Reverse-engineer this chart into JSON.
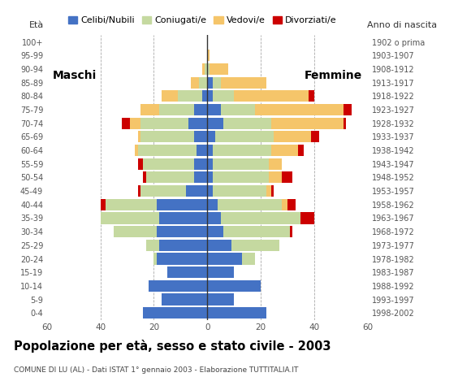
{
  "age_groups": [
    "0-4",
    "5-9",
    "10-14",
    "15-19",
    "20-24",
    "25-29",
    "30-34",
    "35-39",
    "40-44",
    "45-49",
    "50-54",
    "55-59",
    "60-64",
    "65-69",
    "70-74",
    "75-79",
    "80-84",
    "85-89",
    "90-94",
    "95-99",
    "100+"
  ],
  "birth_years": [
    "1998-2002",
    "1993-1997",
    "1988-1992",
    "1983-1987",
    "1978-1982",
    "1973-1977",
    "1968-1972",
    "1963-1967",
    "1958-1962",
    "1953-1957",
    "1948-1952",
    "1943-1947",
    "1938-1942",
    "1933-1937",
    "1928-1932",
    "1923-1927",
    "1918-1922",
    "1913-1917",
    "1908-1912",
    "1903-1907",
    "1902 o prima"
  ],
  "males": {
    "celibe": [
      24,
      17,
      22,
      15,
      19,
      18,
      19,
      18,
      19,
      8,
      5,
      5,
      4,
      5,
      7,
      5,
      2,
      0,
      0,
      0,
      0
    ],
    "coniugato": [
      0,
      0,
      0,
      0,
      1,
      5,
      16,
      22,
      19,
      17,
      18,
      19,
      22,
      20,
      18,
      13,
      9,
      3,
      1,
      0,
      0
    ],
    "vedovo": [
      0,
      0,
      0,
      0,
      0,
      0,
      0,
      0,
      0,
      0,
      0,
      0,
      1,
      1,
      4,
      7,
      6,
      3,
      1,
      0,
      0
    ],
    "divorziato": [
      0,
      0,
      0,
      0,
      0,
      0,
      0,
      0,
      2,
      1,
      1,
      2,
      0,
      0,
      3,
      0,
      0,
      0,
      0,
      0,
      0
    ]
  },
  "females": {
    "celibe": [
      22,
      10,
      20,
      10,
      13,
      9,
      6,
      5,
      4,
      2,
      2,
      2,
      2,
      3,
      6,
      5,
      2,
      2,
      0,
      0,
      0
    ],
    "coniugato": [
      0,
      0,
      0,
      0,
      5,
      18,
      25,
      30,
      24,
      20,
      21,
      21,
      22,
      22,
      18,
      13,
      8,
      3,
      1,
      0,
      0
    ],
    "vedovo": [
      0,
      0,
      0,
      0,
      0,
      0,
      0,
      0,
      2,
      2,
      5,
      5,
      10,
      14,
      27,
      33,
      28,
      17,
      7,
      1,
      0
    ],
    "divorziato": [
      0,
      0,
      0,
      0,
      0,
      0,
      1,
      5,
      3,
      1,
      4,
      0,
      2,
      3,
      1,
      3,
      2,
      0,
      0,
      0,
      0
    ]
  },
  "colors": {
    "celibe": "#4472c4",
    "coniugato": "#c5d9a0",
    "vedovo": "#f5c56a",
    "divorziato": "#cc0000"
  },
  "legend_labels": [
    "Celibi/Nubili",
    "Coniugati/e",
    "Vedovi/e",
    "Divorziati/e"
  ],
  "title": "Popolazione per età, sesso e stato civile - 2003",
  "subtitle": "COMUNE DI LU (AL) - Dati ISTAT 1° gennaio 2003 - Elaborazione TUTTITALIA.IT",
  "label_maschi": "Maschi",
  "label_femmine": "Femmine",
  "label_eta": "Età",
  "label_anno": "Anno di nascita",
  "xlim": 60,
  "bg_color": "#ffffff"
}
